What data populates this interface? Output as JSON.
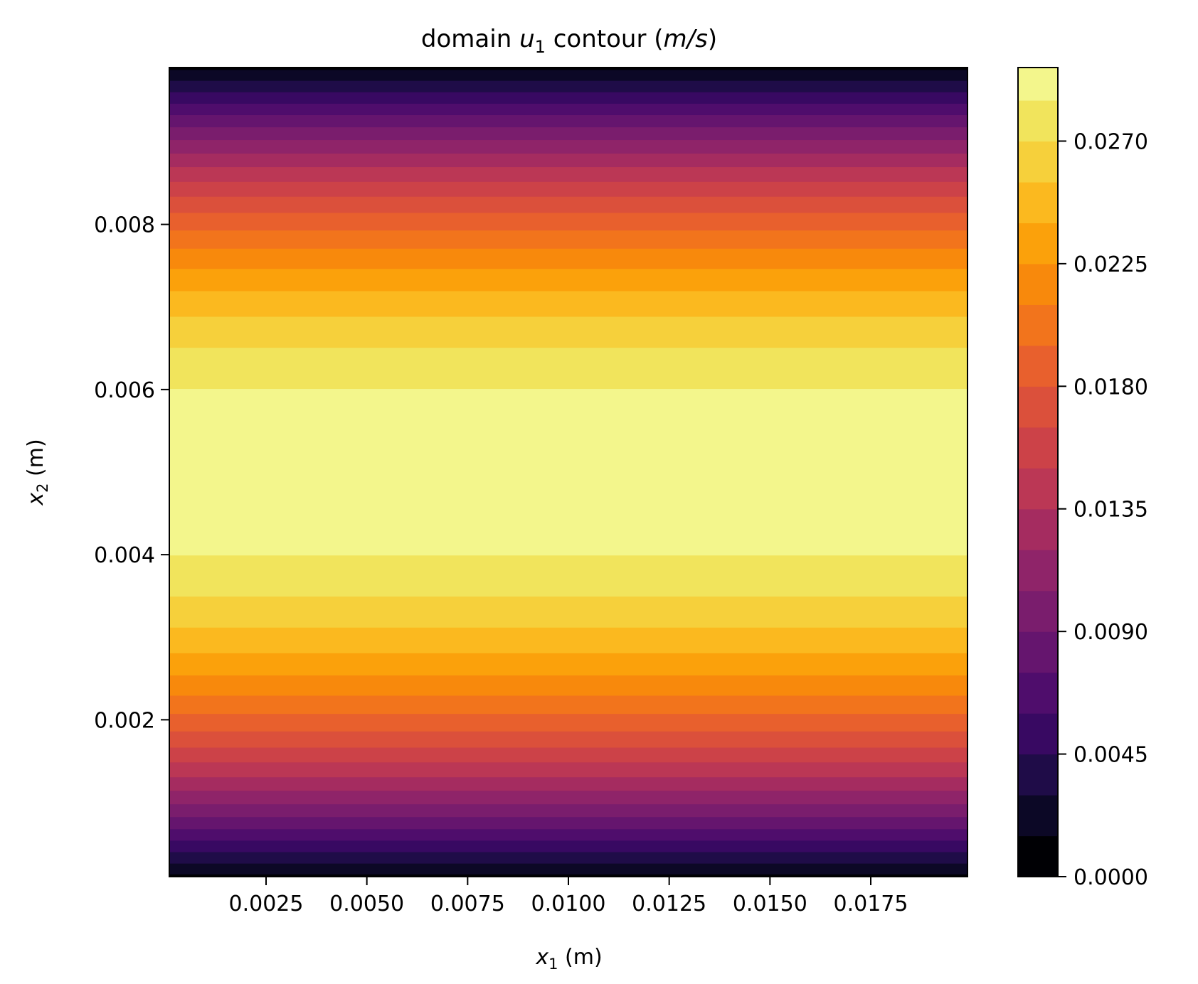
{
  "chart_data": {
    "type": "contourf",
    "title_parts": {
      "prefix": "domain ",
      "var": "u",
      "var_sub": "1",
      "middle": " contour (",
      "unit_num": "m",
      "slash": "/",
      "unit_den": "s",
      "suffix": ")"
    },
    "xlabel_parts": {
      "var": "x",
      "sub": "1",
      "rest": " (m)"
    },
    "ylabel_parts": {
      "var": "x",
      "sub": "2",
      "rest": " (m)"
    },
    "xlim": [
      0.0001,
      0.0199
    ],
    "ylim": [
      0.0001,
      0.0099
    ],
    "x_ticks": [
      0.0025,
      0.005,
      0.0075,
      0.01,
      0.0125,
      0.015,
      0.0175
    ],
    "x_tick_labels": [
      "0.0025",
      "0.0050",
      "0.0075",
      "0.0100",
      "0.0125",
      "0.0150",
      "0.0175"
    ],
    "y_ticks": [
      0.002,
      0.004,
      0.006,
      0.008
    ],
    "y_tick_labels": [
      "0.002",
      "0.004",
      "0.006",
      "0.008"
    ],
    "colorbar": {
      "colormap": "inferno",
      "vmin": 0.0,
      "vmax": 0.0297,
      "level_step": 0.0015,
      "n_levels": 20,
      "ticks": [
        0.0,
        0.0045,
        0.009,
        0.0135,
        0.018,
        0.0225,
        0.027
      ],
      "tick_labels": [
        "0.0000",
        "0.0045",
        "0.0090",
        "0.0135",
        "0.0180",
        "0.0225",
        "0.0270"
      ]
    },
    "field": {
      "description_of_profile": "u1 constant along x1, parabolic in x2",
      "u_max": 0.0297,
      "channel_height": 0.01
    },
    "level_colors": [
      "#000004",
      "#0c0826",
      "#1f0c48",
      "#380962",
      "#4f0d6c",
      "#65156e",
      "#7a1d6d",
      "#8f2469",
      "#a52c60",
      "#bb3755",
      "#cc4248",
      "#db503b",
      "#e8602d",
      "#f2741c",
      "#f8890c",
      "#fba10b",
      "#fbb91f",
      "#f6d03b",
      "#f1e45c",
      "#f3f68c"
    ]
  }
}
